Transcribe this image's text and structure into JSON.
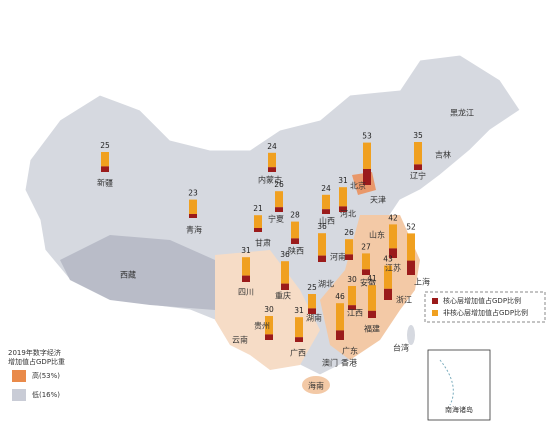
{
  "map_data": {
    "regions": [
      {
        "name": "新疆",
        "value": 25,
        "core": 7
      },
      {
        "name": "内蒙古",
        "value": 24,
        "core": 6
      },
      {
        "name": "北京",
        "value": 53,
        "core": 20
      },
      {
        "name": "辽宁",
        "value": 35,
        "core": 7
      },
      {
        "name": "青海",
        "value": 23,
        "core": 5
      },
      {
        "name": "宁夏",
        "value": 26,
        "core": 6
      },
      {
        "name": "甘肃",
        "value": 21,
        "core": 5
      },
      {
        "name": "山西",
        "value": 24,
        "core": 6
      },
      {
        "name": "河北",
        "value": 31,
        "core": 7
      },
      {
        "name": "陕西",
        "value": 28,
        "core": 7
      },
      {
        "name": "山东",
        "value": 42,
        "core": 12
      },
      {
        "name": "上海",
        "value": 52,
        "core": 18
      },
      {
        "name": "河南",
        "value": 36,
        "core": 8
      },
      {
        "name": "湖北",
        "value": 26,
        "core": 7
      },
      {
        "name": "安徽",
        "value": 27,
        "core": 7
      },
      {
        "name": "四川",
        "value": 31,
        "core": 8
      },
      {
        "name": "重庆",
        "value": 36,
        "core": 8
      },
      {
        "name": "浙江",
        "value": 43,
        "core": 14
      },
      {
        "name": "福建",
        "value": 41,
        "core": 9
      },
      {
        "name": "江西",
        "value": 30,
        "core": 6
      },
      {
        "name": "湖南",
        "value": 25,
        "core": 7
      },
      {
        "name": "贵州",
        "value": 30,
        "core": 7
      },
      {
        "name": "广西",
        "value": 31,
        "core": 6
      },
      {
        "name": "广东",
        "value": 46,
        "core": 12
      }
    ],
    "other_labels": [
      "黑龙江",
      "吉林",
      "天津",
      "江苏",
      "西藏",
      "云南",
      "澳门",
      "香港",
      "台湾",
      "海南"
    ],
    "bar_legend": [
      {
        "name": "核心层增加值占GDP比例",
        "color": "#9b1b1b"
      },
      {
        "name": "非核心层增加值占GDP比例",
        "color": "#f0a020"
      }
    ],
    "color_legend": {
      "title": [
        "2019年数字经济",
        "增加值占GDP比重"
      ],
      "high": "高(53%)",
      "low": "低(16%)"
    },
    "inset_label": "南海诸岛"
  }
}
